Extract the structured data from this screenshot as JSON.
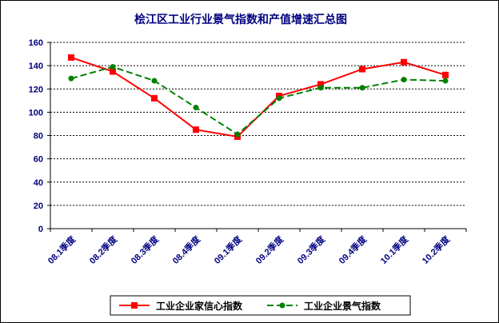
{
  "chart_data": {
    "type": "line",
    "title": "桧江区工业行业景气指数和产值增速汇总图",
    "xlabel": "",
    "ylabel": "",
    "categories": [
      "08.1季度",
      "08.2季度",
      "08.3季度",
      "08.4季度",
      "09.1季度",
      "09.2季度",
      "09.3季度",
      "09.4季度",
      "10.1季度",
      "10.2季度"
    ],
    "ylim": [
      0,
      160
    ],
    "yticks": [
      0,
      20,
      40,
      60,
      80,
      100,
      120,
      140,
      160
    ],
    "grid": true,
    "legend_position": "bottom",
    "series": [
      {
        "name": "工业企业家信心指数",
        "color": "#ff0000",
        "marker": "square",
        "line": "solid",
        "values": [
          147,
          135,
          112,
          85,
          79,
          114,
          124,
          137,
          143,
          132
        ]
      },
      {
        "name": "工业企业景气指数",
        "color": "#008000",
        "marker": "circle",
        "line": "dashed",
        "values": [
          129,
          139,
          127,
          104,
          81,
          112,
          121,
          121,
          128,
          127
        ]
      }
    ]
  }
}
